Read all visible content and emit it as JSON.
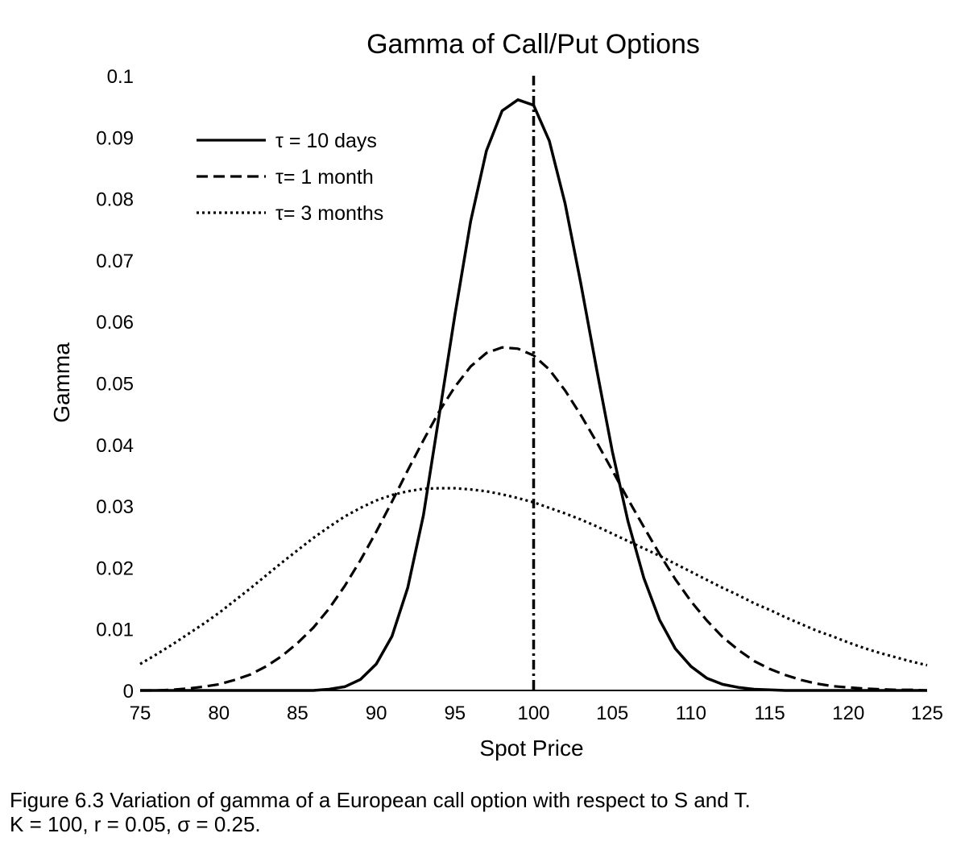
{
  "chart_data": {
    "type": "line",
    "title": "Gamma of Call/Put Options",
    "xlabel": "Spot Price",
    "ylabel": "Gamma",
    "xlim": [
      75,
      125
    ],
    "ylim": [
      0,
      0.1
    ],
    "x_ticks": [
      "75",
      "80",
      "85",
      "90",
      "95",
      "100",
      "105",
      "110",
      "115",
      "120",
      "125"
    ],
    "y_ticks": [
      "0",
      "0.01",
      "0.02",
      "0.03",
      "0.04",
      "0.05",
      "0.06",
      "0.07",
      "0.08",
      "0.09",
      "0.1"
    ],
    "grid": false,
    "legend_position": "top-left",
    "x": [
      75,
      76,
      77,
      78,
      79,
      80,
      81,
      82,
      83,
      84,
      85,
      86,
      87,
      88,
      89,
      90,
      91,
      92,
      93,
      94,
      95,
      96,
      97,
      98,
      99,
      100,
      101,
      102,
      103,
      104,
      105,
      106,
      107,
      108,
      109,
      110,
      111,
      112,
      113,
      114,
      115,
      116,
      117,
      118,
      119,
      120,
      121,
      122,
      123,
      124,
      125
    ],
    "series": [
      {
        "name": "τ = 10 days",
        "style": "solid",
        "values": [
          0,
          0,
          0,
          0,
          0,
          0,
          0,
          0,
          0,
          0,
          0,
          0,
          0.0002,
          0.0006,
          0.0018,
          0.0043,
          0.0088,
          0.0167,
          0.0285,
          0.0448,
          0.0611,
          0.0763,
          0.0878,
          0.0943,
          0.0961,
          0.0952,
          0.0894,
          0.0792,
          0.0662,
          0.0523,
          0.0389,
          0.0275,
          0.0183,
          0.0115,
          0.0068,
          0.0039,
          0.002,
          0.001,
          0.0005,
          0.0002,
          0.0001,
          0,
          0,
          0,
          0,
          0,
          0,
          0,
          0,
          0,
          0
        ]
      },
      {
        "name": "τ= 1 month",
        "style": "dashed",
        "values": [
          0,
          0,
          0.0001,
          0.0003,
          0.0006,
          0.001,
          0.0017,
          0.0026,
          0.0039,
          0.0056,
          0.0077,
          0.0102,
          0.0133,
          0.017,
          0.0212,
          0.0258,
          0.0307,
          0.0358,
          0.0407,
          0.0454,
          0.0494,
          0.0527,
          0.0549,
          0.0558,
          0.0556,
          0.0545,
          0.0522,
          0.0488,
          0.0448,
          0.0404,
          0.0358,
          0.0311,
          0.0266,
          0.0222,
          0.0181,
          0.0145,
          0.0114,
          0.0087,
          0.0066,
          0.0048,
          0.0035,
          0.0025,
          0.0017,
          0.0011,
          0.0007,
          0.0005,
          0.0003,
          0.0002,
          0.0001,
          0.0001,
          0
        ]
      },
      {
        "name": "τ= 3 months",
        "style": "dotted",
        "values": [
          0.0043,
          0.0058,
          0.0074,
          0.0091,
          0.0108,
          0.0126,
          0.0146,
          0.0166,
          0.0187,
          0.0208,
          0.0228,
          0.0248,
          0.0266,
          0.0283,
          0.0297,
          0.0309,
          0.0318,
          0.0324,
          0.0328,
          0.0329,
          0.0329,
          0.0327,
          0.0324,
          0.0319,
          0.0313,
          0.0306,
          0.0297,
          0.0288,
          0.0278,
          0.0267,
          0.0255,
          0.0243,
          0.0231,
          0.0219,
          0.0206,
          0.0193,
          0.018,
          0.0167,
          0.0155,
          0.0142,
          0.0131,
          0.0119,
          0.0108,
          0.0097,
          0.0088,
          0.0078,
          0.0069,
          0.0061,
          0.0054,
          0.0047,
          0.0041
        ]
      }
    ],
    "reference_line": {
      "x": 100,
      "style": "dash-dot"
    }
  },
  "caption": {
    "line1": "Figure 6.3 Variation of gamma of a European call option with respect to S and T.",
    "line2": "K = 100, r = 0.05, σ = 0.25."
  }
}
